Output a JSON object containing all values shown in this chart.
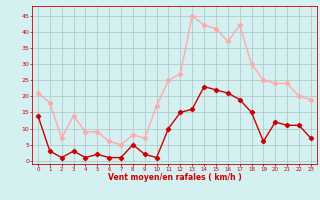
{
  "hours": [
    0,
    1,
    2,
    3,
    4,
    5,
    6,
    7,
    8,
    9,
    10,
    11,
    12,
    13,
    14,
    15,
    16,
    17,
    18,
    19,
    20,
    21,
    22,
    23
  ],
  "wind_avg": [
    14,
    3,
    1,
    3,
    1,
    2,
    1,
    1,
    5,
    2,
    1,
    10,
    15,
    16,
    23,
    22,
    21,
    19,
    15,
    6,
    12,
    11,
    11,
    7
  ],
  "wind_gust": [
    21,
    18,
    7,
    14,
    9,
    9,
    6,
    5,
    8,
    7,
    17,
    25,
    27,
    45,
    42,
    41,
    37,
    42,
    30,
    25,
    24,
    24,
    20,
    19
  ],
  "avg_color": "#cc0000",
  "gust_color": "#ffaaaa",
  "background_color": "#d4f0f0",
  "grid_color": "#b0cccc",
  "xlabel": "Vent moyen/en rafales ( km/h )",
  "xlabel_color": "#cc0000",
  "ylabel_color": "#cc0000",
  "yticks": [
    0,
    5,
    10,
    15,
    20,
    25,
    30,
    35,
    40,
    45
  ],
  "ylim": [
    -1,
    48
  ],
  "xlim": [
    -0.5,
    23.5
  ]
}
